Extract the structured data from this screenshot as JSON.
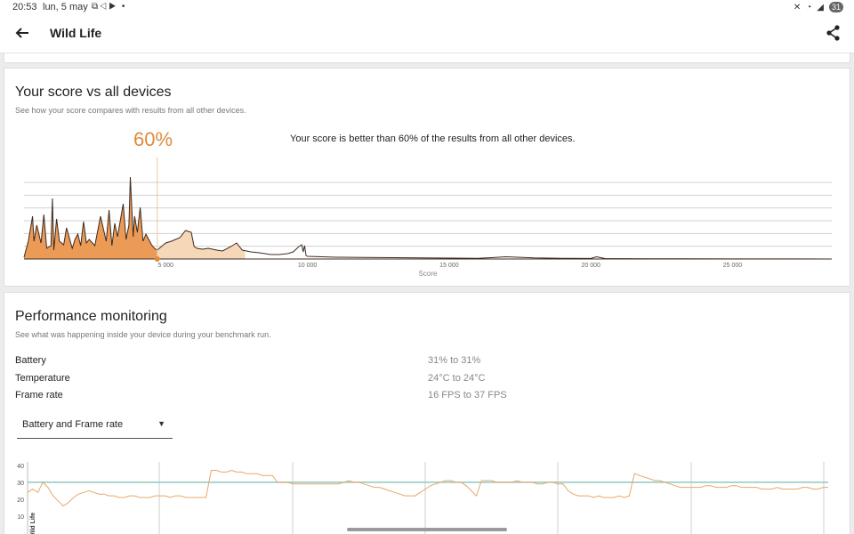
{
  "status": {
    "time": "20:53",
    "date": "lun, 5 may",
    "battery": "31"
  },
  "appbar": {
    "title": "Wild Life",
    "back_icon": "arrow-left-icon",
    "share_icon": "share-icon"
  },
  "score_card": {
    "title": "Your score vs all devices",
    "subtitle": "See how your score compares with results from all other devices.",
    "percent": "60%",
    "compare_text": "Your score is better than 60% of the results from all other devices.",
    "accent": "#e08a3c"
  },
  "chart_data": [
    {
      "type": "area",
      "xlabel": "Score",
      "x_ticks": [
        "5 000",
        "10 000",
        "15 000",
        "20 000",
        "25 000"
      ],
      "xlim": [
        0,
        28500
      ],
      "your_score": 4700,
      "x": [
        0,
        150,
        300,
        350,
        450,
        600,
        700,
        800,
        950,
        1000,
        1050,
        1150,
        1250,
        1400,
        1500,
        1700,
        1800,
        1900,
        2000,
        2100,
        2200,
        2300,
        2500,
        2700,
        2900,
        3000,
        3100,
        3200,
        3300,
        3500,
        3600,
        3700,
        3750,
        3850,
        3900,
        4000,
        4100,
        4200,
        4300,
        4400,
        4500,
        4600,
        4700,
        4850,
        5000,
        5200,
        5500,
        5700,
        5900,
        6000,
        6100,
        6300,
        6500,
        6800,
        7000,
        7300,
        7500,
        7700,
        8000,
        8300,
        8500,
        8700,
        9000,
        9300,
        9500,
        9700,
        9800,
        9850,
        9900,
        9950,
        10000,
        10500,
        11000,
        12000,
        13000,
        14000,
        15000,
        16000,
        16500,
        17000,
        18000,
        19000,
        20000,
        20200,
        20500,
        21000,
        22000,
        23000,
        25000,
        27000,
        28500
      ],
      "values": [
        2,
        20,
        48,
        20,
        38,
        18,
        50,
        12,
        15,
        68,
        10,
        45,
        20,
        16,
        35,
        12,
        22,
        28,
        15,
        42,
        18,
        22,
        15,
        48,
        20,
        55,
        15,
        40,
        25,
        62,
        22,
        38,
        92,
        25,
        48,
        30,
        58,
        20,
        28,
        22,
        16,
        12,
        10,
        14,
        18,
        20,
        24,
        32,
        30,
        14,
        12,
        11,
        12,
        10,
        9,
        14,
        18,
        10,
        8,
        7,
        6,
        5,
        5,
        6,
        8,
        14,
        16,
        8,
        15,
        4,
        3,
        2.5,
        2,
        1.8,
        1.5,
        1.2,
        1,
        0.8,
        1.5,
        2.5,
        1.2,
        0.8,
        0.6,
        2.5,
        0.5,
        0.4,
        0.3,
        0.2,
        0.1,
        0.1,
        0.05
      ],
      "series_colors": {
        "below": "#eb9b55",
        "above": "#f6d7b8",
        "line": "#3d2b22"
      }
    },
    {
      "type": "line",
      "y_ticks": [
        10,
        20,
        30,
        40
      ],
      "ylim": [
        0,
        42
      ],
      "ylabel": "Wild Life",
      "reference_line": {
        "value": 30,
        "color": "#8fc8c2"
      },
      "line_color": "#e9a76a",
      "values": [
        24,
        26,
        24,
        30,
        27,
        22,
        19,
        16,
        18,
        21,
        23,
        24,
        25,
        24,
        23,
        23,
        22,
        22,
        21,
        21,
        22,
        22,
        21,
        21,
        21,
        22,
        22,
        22,
        21,
        22,
        22,
        21,
        21,
        21,
        21,
        21,
        37,
        37,
        36,
        36,
        37,
        36,
        36,
        35,
        35,
        35,
        34,
        34,
        34,
        30,
        30,
        30,
        29,
        29,
        29,
        29,
        29,
        29,
        29,
        29,
        29,
        29,
        30,
        31,
        30,
        30,
        29,
        28,
        27,
        27,
        26,
        25,
        24,
        23,
        22,
        22,
        22,
        24,
        26,
        28,
        29,
        30,
        31,
        31,
        30,
        30,
        28,
        25,
        22,
        31,
        31,
        31,
        30,
        30,
        30,
        30,
        31,
        30,
        30,
        30,
        29,
        29,
        30,
        30,
        29,
        29,
        25,
        23,
        22,
        22,
        22,
        21,
        22,
        21,
        21,
        21,
        22,
        21,
        22,
        35,
        34,
        33,
        32,
        31,
        31,
        30,
        29,
        28,
        27,
        27,
        27,
        27,
        27,
        28,
        28,
        27,
        27,
        27,
        28,
        28,
        27,
        27,
        27,
        27,
        26,
        26,
        26,
        27,
        26,
        26,
        26,
        26,
        27,
        27,
        26,
        26,
        27,
        27
      ]
    }
  ],
  "perf_card": {
    "title": "Performance monitoring",
    "subtitle": "See what was happening inside your device during your benchmark run.",
    "metrics": [
      {
        "label": "Battery",
        "value": "31% to 31%"
      },
      {
        "label": "Temperature",
        "value": "24°C to 24°C"
      },
      {
        "label": "Frame rate",
        "value": "16 FPS to 37 FPS"
      }
    ],
    "dropdown": {
      "selected": "Battery and Frame rate",
      "icon": "caret-down-icon"
    }
  }
}
